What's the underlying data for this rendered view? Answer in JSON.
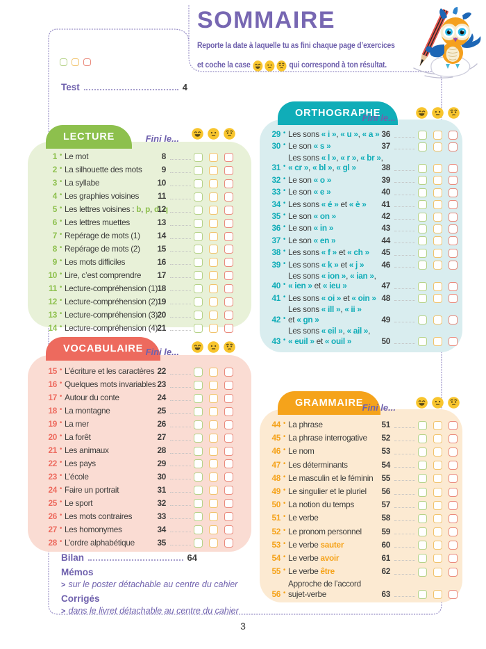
{
  "header": {
    "title": "SOMMAIRE",
    "subtitle_line1": "Reporte la date à laquelle tu as fini chaque page d’exercices",
    "subtitle_line2_prefix": "et coche la case",
    "subtitle_line2_suffix": "qui correspond à ton résultat."
  },
  "toc_top": {
    "label": "Test",
    "page": "4"
  },
  "fini_label": "Fini le...",
  "emojis": {
    "good": "happy-emoji-icon",
    "medium": "neutral-emoji-icon",
    "bad": "worried-emoji-icon"
  },
  "colors": {
    "purple": "#6f61ad",
    "title_purple": "#7767b2",
    "text": "#3d3d3c",
    "leader_gray": "#c3c3c3",
    "leader_purple": "#a69ecd",
    "emoji_yellow": "#f8c52d",
    "emoji_features": "#5a4a1a",
    "checkbox": [
      "#b5d287",
      "#f1c36c",
      "#ea8a7c"
    ]
  },
  "sections": [
    {
      "id": "lecture",
      "title": "LECTURE",
      "accent": "#8dc04d",
      "bg": "#e8f1d8",
      "items": [
        {
          "n": "1",
          "p": "8",
          "l": [
            [
              [
                "Le mot",
                0
              ]
            ]
          ]
        },
        {
          "n": "2",
          "p": "9",
          "l": [
            [
              [
                "La silhouette des mots",
                0
              ]
            ]
          ]
        },
        {
          "n": "3",
          "p": "10",
          "l": [
            [
              [
                "La syllabe",
                0
              ]
            ]
          ]
        },
        {
          "n": "4",
          "p": "11",
          "l": [
            [
              [
                "Les graphies voisines",
                0
              ]
            ]
          ]
        },
        {
          "n": "5",
          "p": "12",
          "l": [
            [
              [
                "Les lettres voisines : ",
                0
              ],
              [
                "b",
                1
              ],
              [
                ", ",
                0
              ],
              [
                "p",
                1
              ],
              [
                ", ",
                0
              ],
              [
                "d",
                1
              ],
              [
                ", ",
                0
              ],
              [
                "q",
                1
              ]
            ]
          ]
        },
        {
          "n": "6",
          "p": "13",
          "l": [
            [
              [
                "Les lettres muettes",
                0
              ]
            ]
          ]
        },
        {
          "n": "7",
          "p": "14",
          "l": [
            [
              [
                "Repérage de mots (1)",
                0
              ]
            ]
          ]
        },
        {
          "n": "8",
          "p": "15",
          "l": [
            [
              [
                "Repérage de mots (2)",
                0
              ]
            ]
          ]
        },
        {
          "n": "9",
          "p": "16",
          "l": [
            [
              [
                "Les mots difficiles",
                0
              ]
            ]
          ]
        },
        {
          "n": "10",
          "p": "17",
          "l": [
            [
              [
                "Lire, c’est comprendre",
                0
              ]
            ]
          ]
        },
        {
          "n": "11",
          "p": "18",
          "l": [
            [
              [
                "Lecture-compréhension (1)",
                0
              ]
            ]
          ]
        },
        {
          "n": "12",
          "p": "19",
          "l": [
            [
              [
                "Lecture-compréhension (2)",
                0
              ]
            ]
          ]
        },
        {
          "n": "13",
          "p": "20",
          "l": [
            [
              [
                "Lecture-compréhension (3)",
                0
              ]
            ]
          ]
        },
        {
          "n": "14",
          "p": "21",
          "l": [
            [
              [
                "Lecture-compréhension (4)",
                0
              ]
            ]
          ]
        }
      ]
    },
    {
      "id": "orthographe",
      "title": "ORTHOGRAPHE",
      "accent": "#10adb8",
      "bg": "#d9edef",
      "items": [
        {
          "n": "29",
          "p": "36",
          "l": [
            [
              [
                "Les sons ",
                0
              ],
              [
                "« i »",
                1
              ],
              [
                ", ",
                0
              ],
              [
                "« u »",
                1
              ],
              [
                ", ",
                0
              ],
              [
                "« a »",
                1
              ]
            ]
          ]
        },
        {
          "n": "30",
          "p": "37",
          "l": [
            [
              [
                "Le son ",
                0
              ],
              [
                "« s »",
                1
              ]
            ]
          ]
        },
        {
          "n": "31",
          "p": "38",
          "l": [
            [
              [
                "Les sons ",
                0
              ],
              [
                "« l »",
                1
              ],
              [
                ", ",
                0
              ],
              [
                "« r »",
                1
              ],
              [
                ", ",
                0
              ],
              [
                "« br »",
                1
              ],
              [
                ",",
                0
              ]
            ],
            [
              [
                "« cr »",
                1
              ],
              [
                ", ",
                0
              ],
              [
                "« bl »",
                1
              ],
              [
                ", ",
                0
              ],
              [
                "« gl »",
                1
              ]
            ]
          ]
        },
        {
          "n": "32",
          "p": "39",
          "l": [
            [
              [
                "Le son ",
                0
              ],
              [
                "« o »",
                1
              ]
            ]
          ]
        },
        {
          "n": "33",
          "p": "40",
          "l": [
            [
              [
                "Le son ",
                0
              ],
              [
                "« e »",
                1
              ]
            ]
          ]
        },
        {
          "n": "34",
          "p": "41",
          "l": [
            [
              [
                "Les sons ",
                0
              ],
              [
                "« é »",
                1
              ],
              [
                " et ",
                0
              ],
              [
                "« è »",
                1
              ]
            ]
          ]
        },
        {
          "n": "35",
          "p": "42",
          "l": [
            [
              [
                "Le son ",
                0
              ],
              [
                "« on »",
                1
              ]
            ]
          ]
        },
        {
          "n": "36",
          "p": "43",
          "l": [
            [
              [
                "Le son ",
                0
              ],
              [
                "« in »",
                1
              ]
            ]
          ]
        },
        {
          "n": "37",
          "p": "44",
          "l": [
            [
              [
                "Le son ",
                0
              ],
              [
                "« en »",
                1
              ]
            ]
          ]
        },
        {
          "n": "38",
          "p": "45",
          "l": [
            [
              [
                "Les sons ",
                0
              ],
              [
                "« f »",
                1
              ],
              [
                " et ",
                0
              ],
              [
                "« ch »",
                1
              ]
            ]
          ]
        },
        {
          "n": "39",
          "p": "46",
          "l": [
            [
              [
                "Les sons ",
                0
              ],
              [
                "« k »",
                1
              ],
              [
                " et ",
                0
              ],
              [
                "« j »",
                1
              ]
            ]
          ]
        },
        {
          "n": "40",
          "p": "47",
          "l": [
            [
              [
                "Les sons ",
                0
              ],
              [
                "« ion »",
                1
              ],
              [
                ", ",
                0
              ],
              [
                "« ian »",
                1
              ],
              [
                ",",
                0
              ]
            ],
            [
              [
                "« ien »",
                1
              ],
              [
                " et ",
                0
              ],
              [
                "« ieu »",
                1
              ]
            ]
          ]
        },
        {
          "n": "41",
          "p": "48",
          "l": [
            [
              [
                "Les sons ",
                0
              ],
              [
                "« oi »",
                1
              ],
              [
                " et ",
                0
              ],
              [
                "« oin »",
                1
              ]
            ]
          ]
        },
        {
          "n": "42",
          "p": "49",
          "l": [
            [
              [
                "Les sons ",
                0
              ],
              [
                "« ill »",
                1
              ],
              [
                ", ",
                0
              ],
              [
                "« ii »",
                1
              ]
            ],
            [
              [
                "et ",
                0
              ],
              [
                "« gn »",
                1
              ]
            ]
          ]
        },
        {
          "n": "43",
          "p": "50",
          "l": [
            [
              [
                "Les sons ",
                0
              ],
              [
                "« eil »",
                1
              ],
              [
                ", ",
                0
              ],
              [
                "« ail »",
                1
              ],
              [
                ",",
                0
              ]
            ],
            [
              [
                "« euil »",
                1
              ],
              [
                " et ",
                0
              ],
              [
                "« ouil »",
                1
              ]
            ]
          ]
        }
      ]
    },
    {
      "id": "vocabulaire",
      "title": "VOCABULAIRE",
      "accent": "#ed6a5e",
      "bg": "#fadcd3",
      "items": [
        {
          "n": "15",
          "p": "22",
          "l": [
            [
              [
                "L’écriture et les caractères",
                0
              ]
            ]
          ]
        },
        {
          "n": "16",
          "p": "23",
          "l": [
            [
              [
                "Quelques mots invariables",
                0
              ]
            ]
          ]
        },
        {
          "n": "17",
          "p": "24",
          "l": [
            [
              [
                "Autour du conte",
                0
              ]
            ]
          ]
        },
        {
          "n": "18",
          "p": "25",
          "l": [
            [
              [
                "La montagne",
                0
              ]
            ]
          ]
        },
        {
          "n": "19",
          "p": "26",
          "l": [
            [
              [
                "La mer",
                0
              ]
            ]
          ]
        },
        {
          "n": "20",
          "p": "27",
          "l": [
            [
              [
                "La forêt",
                0
              ]
            ]
          ]
        },
        {
          "n": "21",
          "p": "28",
          "l": [
            [
              [
                "Les animaux",
                0
              ]
            ]
          ]
        },
        {
          "n": "22",
          "p": "29",
          "l": [
            [
              [
                "Les pays",
                0
              ]
            ]
          ]
        },
        {
          "n": "23",
          "p": "30",
          "l": [
            [
              [
                "L’école",
                0
              ]
            ]
          ]
        },
        {
          "n": "24",
          "p": "31",
          "l": [
            [
              [
                "Faire un portrait",
                0
              ]
            ]
          ]
        },
        {
          "n": "25",
          "p": "32",
          "l": [
            [
              [
                "Le sport",
                0
              ]
            ]
          ]
        },
        {
          "n": "26",
          "p": "33",
          "l": [
            [
              [
                "Les mots contraires",
                0
              ]
            ]
          ]
        },
        {
          "n": "27",
          "p": "34",
          "l": [
            [
              [
                "Les homonymes",
                0
              ]
            ]
          ]
        },
        {
          "n": "28",
          "p": "35",
          "l": [
            [
              [
                "L’ordre alphabétique",
                0
              ]
            ]
          ]
        }
      ]
    },
    {
      "id": "grammaire",
      "title": "GRAMMAIRE",
      "accent": "#f5a31b",
      "bg": "#fcead2",
      "items": [
        {
          "n": "44",
          "p": "51",
          "l": [
            [
              [
                "La phrase",
                0
              ]
            ]
          ]
        },
        {
          "n": "45",
          "p": "52",
          "l": [
            [
              [
                "La phrase interrogative",
                0
              ]
            ]
          ]
        },
        {
          "n": "46",
          "p": "53",
          "l": [
            [
              [
                "Le nom",
                0
              ]
            ]
          ]
        },
        {
          "n": "47",
          "p": "54",
          "l": [
            [
              [
                "Les déterminants",
                0
              ]
            ]
          ]
        },
        {
          "n": "48",
          "p": "55",
          "l": [
            [
              [
                "Le masculin et le féminin",
                0
              ]
            ]
          ]
        },
        {
          "n": "49",
          "p": "56",
          "l": [
            [
              [
                "Le singulier et le pluriel",
                0
              ]
            ]
          ]
        },
        {
          "n": "50",
          "p": "57",
          "l": [
            [
              [
                "La notion du temps",
                0
              ]
            ]
          ]
        },
        {
          "n": "51",
          "p": "58",
          "l": [
            [
              [
                "Le verbe",
                0
              ]
            ]
          ]
        },
        {
          "n": "52",
          "p": "59",
          "l": [
            [
              [
                "Le pronom personnel",
                0
              ]
            ]
          ]
        },
        {
          "n": "53",
          "p": "60",
          "l": [
            [
              [
                "Le verbe ",
                0
              ],
              [
                "sauter",
                1
              ]
            ]
          ]
        },
        {
          "n": "54",
          "p": "61",
          "l": [
            [
              [
                "Le verbe ",
                0
              ],
              [
                "avoir",
                1
              ]
            ]
          ]
        },
        {
          "n": "55",
          "p": "62",
          "l": [
            [
              [
                "Le verbe ",
                0
              ],
              [
                "être",
                1
              ]
            ]
          ]
        },
        {
          "n": "56",
          "p": "63",
          "l": [
            [
              [
                "Approche de l’accord",
                0
              ]
            ],
            [
              [
                "sujet-verbe",
                0
              ]
            ]
          ]
        }
      ]
    }
  ],
  "footer": {
    "bilan_label": "Bilan",
    "bilan_page": "64",
    "memos_label": "Mémos",
    "note_marker": ">",
    "memos_note": "sur le poster détachable au centre du cahier",
    "corriges_label": "Corrigés",
    "corriges_note": "dans le livret détachable au centre du cahier"
  },
  "page": {
    "number": "3"
  }
}
